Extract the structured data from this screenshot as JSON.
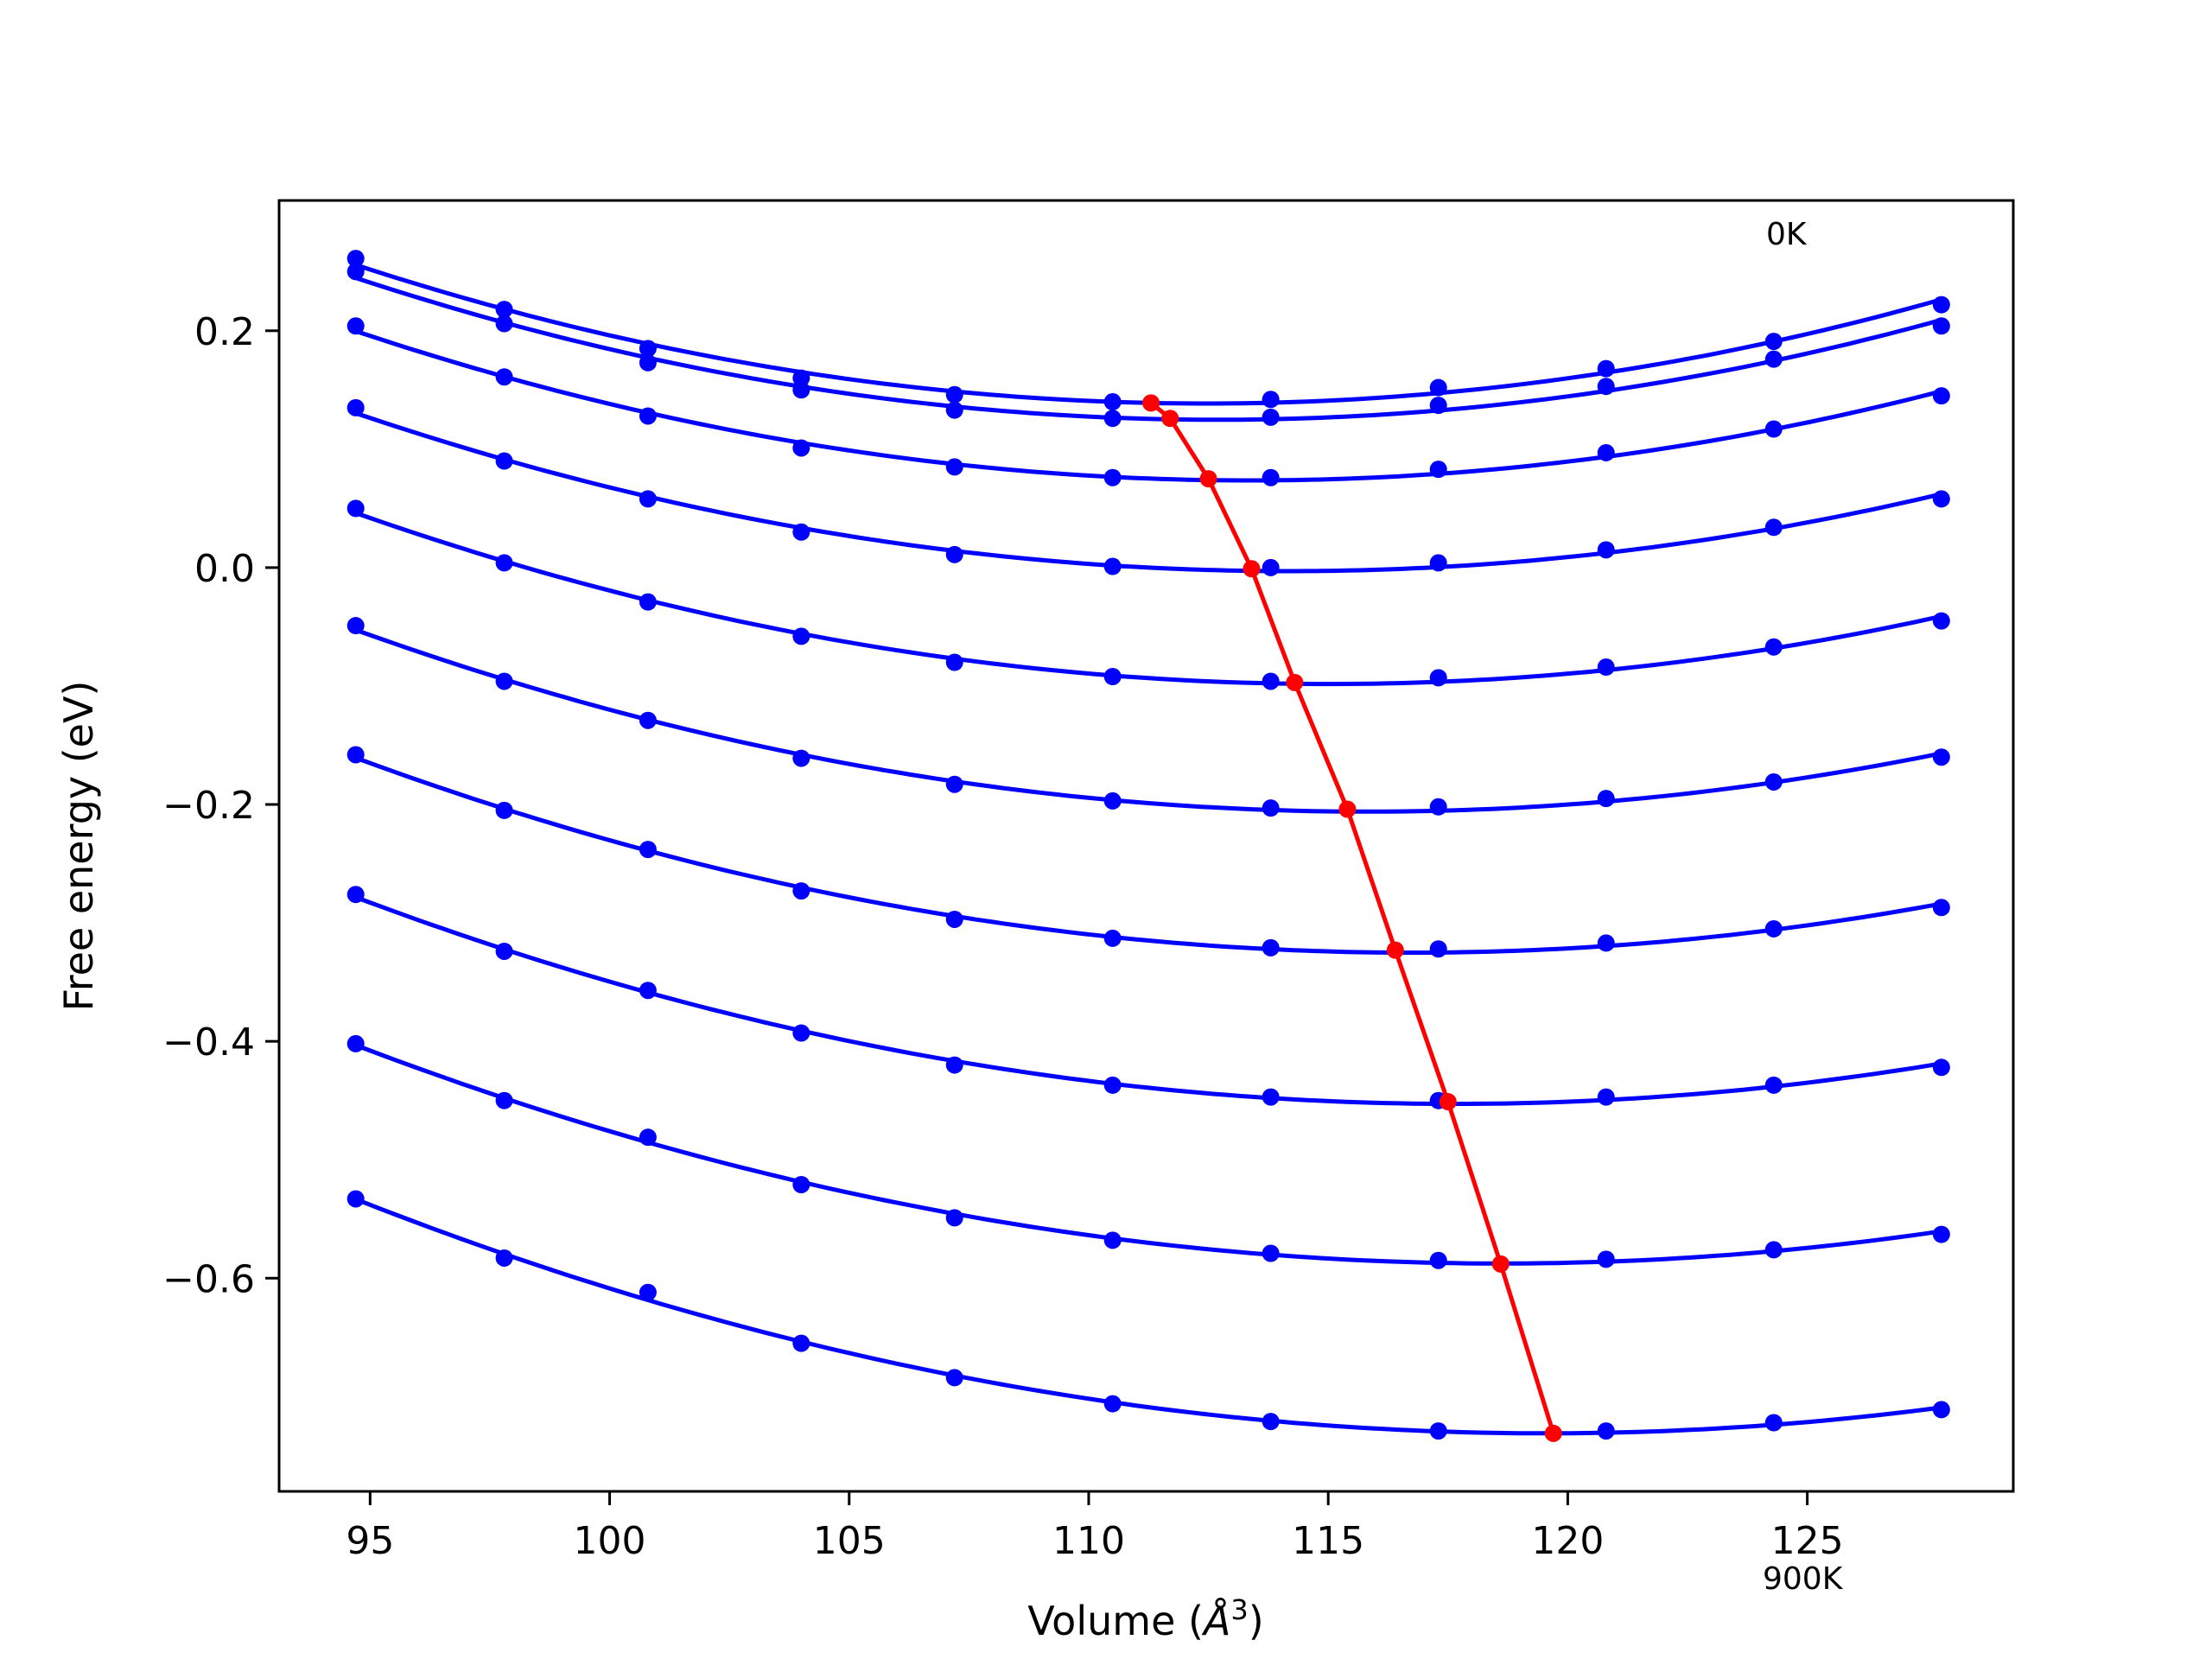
{
  "chart_data": {
    "type": "line",
    "xlabel": "Volume (Å³)",
    "xlabel_base": "Volume (",
    "xlabel_symbol": "Å",
    "xlabel_exp": "3",
    "xlabel_close": ")",
    "ylabel": "Free energy (eV)",
    "xlim": [
      93.1,
      129.3
    ],
    "ylim": [
      -0.78,
      0.31
    ],
    "xticks": [
      95,
      100,
      105,
      110,
      115,
      120,
      125
    ],
    "xtick_labels": [
      "95",
      "100",
      "105",
      "110",
      "115",
      "120",
      "125"
    ],
    "yticks": [
      0.2,
      0.0,
      -0.2,
      -0.4,
      -0.6
    ],
    "ytick_labels": [
      "0.2",
      "0.0",
      "−0.2",
      "−0.4",
      "−0.6"
    ],
    "grid": false,
    "annotations": [
      {
        "text": "0K",
        "at": "top-right"
      },
      {
        "text": "900K",
        "at": "bottom-right"
      }
    ],
    "colors": {
      "curves": "#0000ff",
      "minima": "#ff0000",
      "axes": "#000000"
    },
    "x": [
      94.7,
      97.8,
      100.8,
      104.0,
      107.2,
      110.5,
      113.8,
      117.3,
      120.8,
      124.3,
      127.8
    ],
    "series": [
      {
        "values": [
          0.261,
          0.218,
          0.185,
          0.16,
          0.146,
          0.14,
          0.142,
          0.152,
          0.168,
          0.191,
          0.222
        ]
      },
      {
        "values": [
          0.25,
          0.206,
          0.173,
          0.15,
          0.133,
          0.126,
          0.127,
          0.137,
          0.153,
          0.176,
          0.204
        ]
      },
      {
        "values": [
          0.204,
          0.161,
          0.128,
          0.101,
          0.085,
          0.076,
          0.076,
          0.083,
          0.097,
          0.117,
          0.145
        ]
      },
      {
        "values": [
          0.135,
          0.09,
          0.058,
          0.03,
          0.011,
          0.001,
          0.0,
          0.004,
          0.015,
          0.034,
          0.058
        ]
      },
      {
        "values": [
          0.05,
          0.004,
          -0.029,
          -0.058,
          -0.08,
          -0.092,
          -0.096,
          -0.093,
          -0.084,
          -0.067,
          -0.045
        ]
      },
      {
        "values": [
          -0.049,
          -0.096,
          -0.129,
          -0.161,
          -0.183,
          -0.197,
          -0.203,
          -0.202,
          -0.195,
          -0.181,
          -0.16
        ]
      },
      {
        "values": [
          -0.158,
          -0.205,
          -0.238,
          -0.273,
          -0.297,
          -0.313,
          -0.321,
          -0.322,
          -0.317,
          -0.305,
          -0.287
        ]
      },
      {
        "values": [
          -0.276,
          -0.324,
          -0.357,
          -0.393,
          -0.42,
          -0.437,
          -0.447,
          -0.45,
          -0.447,
          -0.437,
          -0.422
        ]
      },
      {
        "values": [
          -0.402,
          -0.45,
          -0.481,
          -0.521,
          -0.549,
          -0.568,
          -0.579,
          -0.585,
          -0.584,
          -0.576,
          -0.563
        ]
      },
      {
        "values": [
          -0.533,
          -0.583,
          -0.612,
          -0.655,
          -0.684,
          -0.706,
          -0.721,
          -0.729,
          -0.729,
          -0.722,
          -0.711
        ]
      }
    ],
    "minima": {
      "x": [
        111.3,
        111.7,
        112.5,
        113.4,
        114.3,
        115.4,
        116.4,
        117.5,
        118.6,
        119.7
      ],
      "y": [
        0.139,
        0.126,
        0.075,
        -0.001,
        -0.097,
        -0.204,
        -0.323,
        -0.451,
        -0.588,
        -0.731
      ]
    }
  }
}
